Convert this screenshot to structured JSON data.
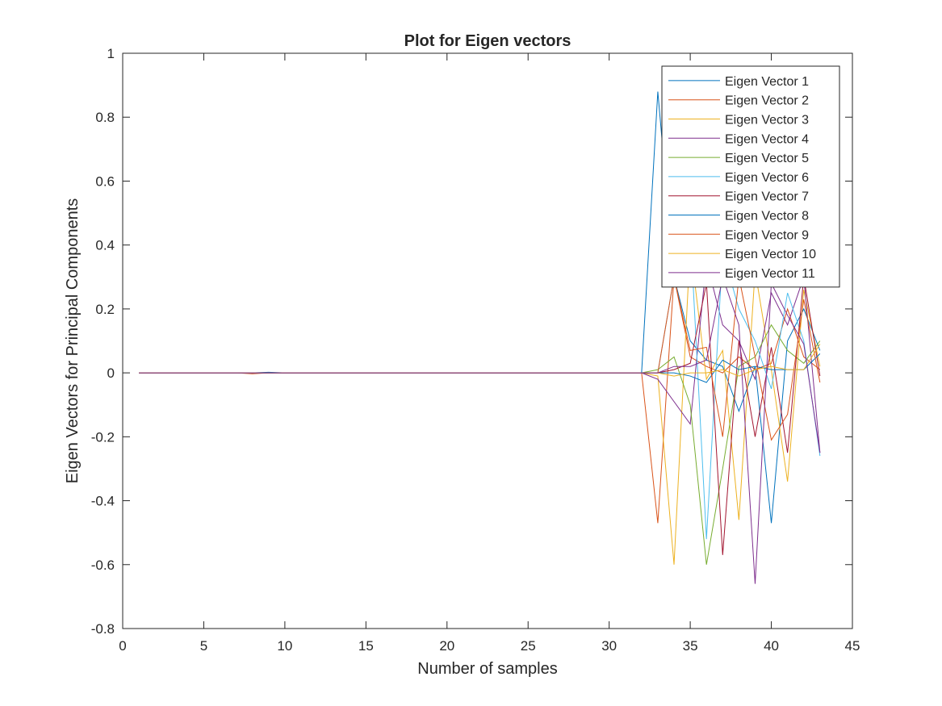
{
  "chart_data": {
    "type": "line",
    "title": "Plot for Eigen vectors",
    "xlabel": "Number of samples",
    "ylabel": "Eigen Vectors for Principal Components",
    "xlim": [
      0,
      45
    ],
    "ylim": [
      -0.8,
      1
    ],
    "xticks": [
      0,
      5,
      10,
      15,
      20,
      25,
      30,
      35,
      40,
      45
    ],
    "yticks": [
      -0.8,
      -0.6,
      -0.4,
      -0.2,
      0,
      0.2,
      0.4,
      0.6,
      0.8,
      1
    ],
    "xtick_labels": [
      "0",
      "5",
      "10",
      "15",
      "20",
      "25",
      "30",
      "35",
      "40",
      "45"
    ],
    "ytick_labels": [
      "-0.8",
      "-0.6",
      "-0.4",
      "-0.2",
      "0",
      "0.2",
      "0.4",
      "0.6",
      "0.8",
      "1"
    ],
    "grid": false,
    "box": true,
    "legend_position": "top-right",
    "x": [
      1,
      2,
      3,
      4,
      5,
      6,
      7,
      8,
      9,
      10,
      11,
      12,
      13,
      14,
      15,
      16,
      17,
      18,
      19,
      20,
      21,
      22,
      23,
      24,
      25,
      26,
      27,
      28,
      29,
      30,
      31,
      32,
      33,
      34,
      35,
      36,
      37,
      38,
      39,
      40,
      41,
      42,
      43
    ],
    "series": [
      {
        "name": "Eigen Vector 1",
        "color": "#0072BD",
        "values": [
          0,
          0,
          0,
          0,
          0,
          0,
          0,
          0,
          0.002,
          0,
          0,
          0,
          0,
          0,
          0,
          0,
          0,
          0,
          0,
          0,
          0,
          0,
          0,
          0,
          0,
          0,
          0,
          0,
          0,
          0,
          0,
          0,
          0.88,
          0.3,
          0.1,
          0.04,
          0.02,
          -0.12,
          0.02,
          -0.47,
          0.1,
          0.2,
          0.07
        ]
      },
      {
        "name": "Eigen Vector 2",
        "color": "#D95319",
        "values": [
          0,
          0,
          0,
          0,
          0,
          0,
          0,
          -0.003,
          0,
          0,
          0,
          0,
          0,
          0,
          0,
          0,
          0,
          0,
          0,
          0,
          0,
          0,
          0,
          0,
          0,
          0,
          0,
          0,
          0,
          0,
          0,
          0,
          -0.47,
          0.3,
          0.05,
          0.02,
          0,
          0.05,
          0.01,
          0.03,
          0.2,
          0.05,
          0.01
        ]
      },
      {
        "name": "Eigen Vector 3",
        "color": "#EDB120",
        "values": [
          0,
          0,
          0,
          0,
          0,
          0,
          0,
          0,
          0,
          0,
          0,
          0,
          0,
          0,
          0,
          0,
          0,
          0,
          0,
          0,
          0,
          0,
          0,
          0,
          0,
          0,
          0,
          0,
          0,
          0,
          0,
          0,
          -0.01,
          -0.6,
          0.4,
          -0.02,
          0.07,
          -0.46,
          0.32,
          0.01,
          -0.34,
          0.26,
          0.02
        ]
      },
      {
        "name": "Eigen Vector 4",
        "color": "#7E2F8E",
        "values": [
          0,
          0,
          0,
          0,
          0,
          0,
          0,
          0,
          0,
          0,
          0,
          0,
          0,
          0,
          0,
          0,
          0,
          0,
          0,
          0,
          0,
          0,
          0,
          0,
          0,
          0,
          0,
          0,
          0,
          0,
          0,
          0,
          -0.02,
          -0.09,
          -0.16,
          0.35,
          0.15,
          0.1,
          -0.02,
          0.25,
          0.15,
          0.3,
          -0.25
        ]
      },
      {
        "name": "Eigen Vector 5",
        "color": "#77AC30",
        "values": [
          0,
          0,
          0,
          0,
          0,
          0,
          0,
          0,
          0,
          0,
          0,
          0,
          0,
          0,
          0,
          0,
          0,
          0,
          0,
          0,
          0,
          0,
          0,
          0,
          0,
          0,
          0,
          0,
          0,
          0,
          0,
          0,
          0.01,
          0.05,
          -0.1,
          -0.6,
          -0.3,
          0.02,
          0.05,
          0.15,
          0.07,
          0.03,
          0.1
        ]
      },
      {
        "name": "Eigen Vector 6",
        "color": "#4DBEEE",
        "values": [
          0,
          0,
          0,
          0,
          0,
          0,
          0,
          0,
          0,
          0,
          0,
          0,
          0,
          0,
          0,
          0,
          0,
          0,
          0,
          0,
          0,
          0,
          0,
          0,
          0,
          0,
          0,
          0,
          0,
          0,
          0,
          0,
          0,
          0.3,
          0.45,
          -0.52,
          0.38,
          0.2,
          0.1,
          -0.05,
          0.25,
          0.1,
          -0.26
        ]
      },
      {
        "name": "Eigen Vector 7",
        "color": "#A2142F",
        "values": [
          0,
          0,
          0,
          0,
          0,
          0,
          0,
          0,
          0,
          0,
          0,
          0,
          0,
          0,
          0,
          0,
          0,
          0,
          0,
          0,
          0,
          0,
          0,
          0,
          0,
          0,
          0,
          0,
          0,
          0,
          0,
          0,
          0,
          0.01,
          0.03,
          0.28,
          -0.57,
          0.1,
          -0.2,
          0.08,
          -0.25,
          0.3,
          -0.01
        ]
      },
      {
        "name": "Eigen Vector 8",
        "color": "#0072BD",
        "values": [
          0,
          0,
          0,
          0,
          0,
          0,
          0,
          0,
          0,
          0,
          0,
          0,
          0,
          0,
          0,
          0,
          0,
          0,
          0,
          0,
          0,
          0,
          0,
          0,
          0,
          0,
          0,
          0,
          0,
          0,
          0,
          0,
          0,
          0,
          -0.01,
          -0.03,
          0.04,
          0.01,
          0.02,
          0.01,
          0.01,
          0.01,
          0.06
        ]
      },
      {
        "name": "Eigen Vector 9",
        "color": "#D95319",
        "values": [
          0,
          0,
          0,
          0,
          0,
          0,
          0,
          0,
          0,
          0,
          0,
          0,
          0,
          0,
          0,
          0,
          0,
          0,
          0,
          0,
          0,
          0,
          0,
          0,
          0,
          0,
          0,
          0,
          0,
          0,
          0,
          0,
          0,
          0.3,
          0.07,
          0.08,
          -0.2,
          0.3,
          0.05,
          -0.21,
          -0.13,
          0.23,
          -0.03
        ]
      },
      {
        "name": "Eigen Vector 10",
        "color": "#EDB120",
        "values": [
          0,
          0,
          0,
          0,
          0,
          0,
          0,
          0,
          0,
          0,
          0,
          0,
          0,
          0,
          0,
          0,
          0,
          0,
          0,
          0,
          0,
          0,
          0,
          0,
          0,
          0,
          0,
          0,
          0,
          0,
          0,
          0,
          0,
          -0.01,
          0,
          0,
          0.01,
          -0.01,
          0.01,
          0.02,
          0.01,
          0.01,
          0.09
        ]
      },
      {
        "name": "Eigen Vector 11",
        "color": "#7E2F8E",
        "values": [
          0,
          0,
          0,
          0,
          0,
          0,
          0,
          0,
          0,
          0,
          0,
          0,
          0,
          0,
          0,
          0,
          0,
          0,
          0,
          0,
          0,
          0,
          0,
          0,
          0,
          0,
          0,
          0,
          0,
          0,
          0,
          0,
          0,
          0.02,
          0.02,
          0.04,
          0.3,
          0.15,
          -0.66,
          0.28,
          0.18,
          0.09,
          -0.25
        ]
      }
    ]
  }
}
